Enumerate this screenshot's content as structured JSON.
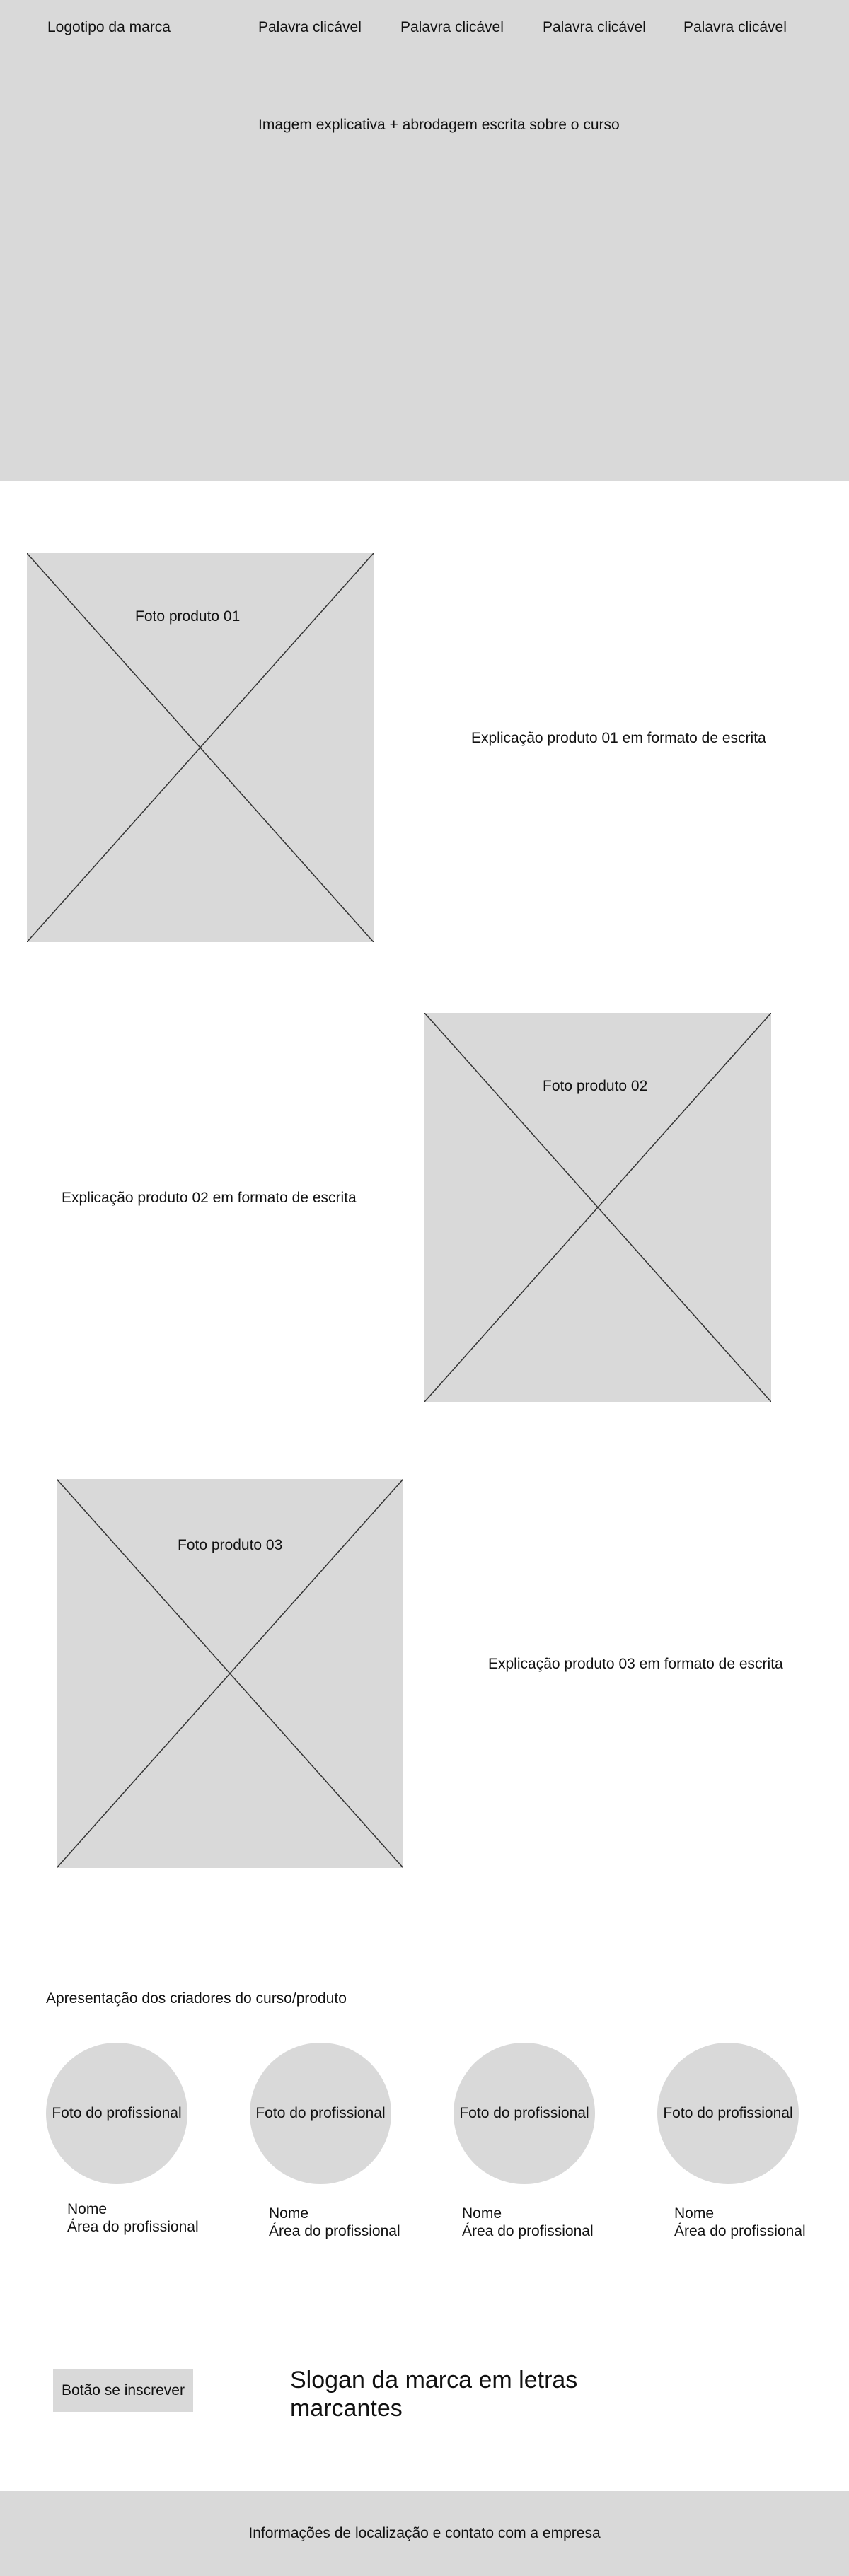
{
  "header": {
    "logo": "Logotipo da marca",
    "nav": [
      "Palavra clicável",
      "Palavra clicável",
      "Palavra clicável",
      "Palavra clicável"
    ]
  },
  "hero": {
    "text": "Imagem explicativa + abrodagem escrita sobre  o curso"
  },
  "products": [
    {
      "photo_label": "Foto produto 01",
      "description": "Explicação produto 01 em formato de escrita"
    },
    {
      "photo_label": "Foto produto 02",
      "description": "Explicação produto 02 em formato de escrita"
    },
    {
      "photo_label": "Foto produto 03",
      "description": "Explicação produto 03 em formato de escrita"
    }
  ],
  "creators": {
    "heading": "Apresentação dos criadores do curso/produto",
    "items": [
      {
        "photo": "Foto do profissional",
        "name": "Nome",
        "area": "Área do profissional"
      },
      {
        "photo": "Foto do profissional",
        "name": "Nome",
        "area": "Área do profissional"
      },
      {
        "photo": "Foto do profissional",
        "name": "Nome",
        "area": "Área do profissional"
      },
      {
        "photo": "Foto do profissional",
        "name": "Nome",
        "area": "Área do profissional"
      }
    ]
  },
  "cta": {
    "button_label": "Botão se inscrever",
    "slogan": "Slogan da marca  em letras marcantes"
  },
  "footer": {
    "text": "Informações de localização e contato com a empresa"
  },
  "colors": {
    "placeholder": "#d9d9d9",
    "text": "#111111",
    "background": "#ffffff"
  }
}
